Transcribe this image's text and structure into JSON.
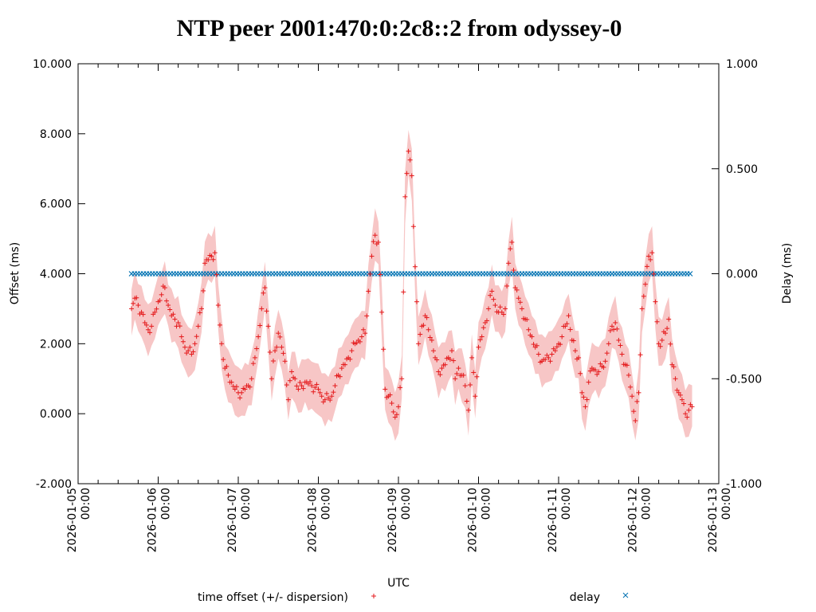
{
  "chart_data": {
    "type": "scatter",
    "title": "NTP peer 2001:470:0:2c8::2 from odyssey-0",
    "xlabel": "UTC",
    "ylabel": "Offset (ms)",
    "y2label": "Delay (ms)",
    "xrange": [
      "2026-01-05 00:00",
      "2026-01-13 00:00"
    ],
    "ylim": [
      -2.0,
      10.0
    ],
    "y2lim": [
      -1.0,
      1.0
    ],
    "grid": false,
    "legend_position": "bottom",
    "x_tick_labels": [
      {
        "date": "2026-01-05",
        "time": "00:00"
      },
      {
        "date": "2026-01-06",
        "time": "00:00"
      },
      {
        "date": "2026-01-07",
        "time": "00:00"
      },
      {
        "date": "2026-01-08",
        "time": "00:00"
      },
      {
        "date": "2026-01-09",
        "time": "00:00"
      },
      {
        "date": "2026-01-10",
        "time": "00:00"
      },
      {
        "date": "2026-01-11",
        "time": "00:00"
      },
      {
        "date": "2026-01-12",
        "time": "00:00"
      },
      {
        "date": "2026-01-13",
        "time": "00:00"
      }
    ],
    "y_tick_labels": [
      "-2.000",
      "0.000",
      "2.000",
      "4.000",
      "6.000",
      "8.000",
      "10.000"
    ],
    "y_tick_values": [
      -2,
      0,
      2,
      4,
      6,
      8,
      10
    ],
    "y2_tick_labels": [
      "-1.000",
      "-0.500",
      "0.000",
      "0.500",
      "1.000"
    ],
    "y2_tick_values": [
      -1.0,
      -0.5,
      0.0,
      0.5,
      1.0
    ],
    "x_unit": "hours since 2026-01-05 00:00",
    "series": [
      {
        "name": "time offset (+/- dispersion)",
        "marker": "+",
        "color": "#e41a1c",
        "band_color": "#f7c6c6",
        "dispersion": 0.55,
        "points": [
          [
            16,
            3.0
          ],
          [
            17,
            3.3
          ],
          [
            18,
            3.1
          ],
          [
            19,
            2.9
          ],
          [
            20,
            2.6
          ],
          [
            21,
            2.4
          ],
          [
            22,
            2.5
          ],
          [
            23,
            2.9
          ],
          [
            24,
            3.2
          ],
          [
            25,
            3.4
          ],
          [
            26,
            3.6
          ],
          [
            27,
            3.1
          ],
          [
            28,
            2.8
          ],
          [
            29,
            2.7
          ],
          [
            30,
            2.6
          ],
          [
            31,
            2.2
          ],
          [
            32,
            1.9
          ],
          [
            33,
            1.8
          ],
          [
            34,
            1.7
          ],
          [
            35,
            2.0
          ],
          [
            36,
            2.5
          ],
          [
            37,
            3.0
          ],
          [
            38,
            4.3
          ],
          [
            39,
            4.4
          ],
          [
            40,
            4.5
          ],
          [
            41,
            4.6
          ],
          [
            42,
            3.1
          ],
          [
            43,
            2.0
          ],
          [
            44,
            1.3
          ],
          [
            45,
            1.1
          ],
          [
            46,
            0.9
          ],
          [
            47,
            0.7
          ],
          [
            48,
            0.6
          ],
          [
            49,
            0.6
          ],
          [
            50,
            0.7
          ],
          [
            51,
            0.8
          ],
          [
            52,
            1.0
          ],
          [
            53,
            1.6
          ],
          [
            54,
            2.2
          ],
          [
            55,
            3.0
          ],
          [
            56,
            3.6
          ],
          [
            57,
            2.5
          ],
          [
            58,
            1.0
          ],
          [
            59,
            1.8
          ],
          [
            60,
            2.3
          ],
          [
            61,
            1.9
          ],
          [
            62,
            1.5
          ],
          [
            63,
            0.4
          ],
          [
            64,
            1.2
          ],
          [
            65,
            1.0
          ],
          [
            66,
            0.7
          ],
          [
            67,
            0.8
          ],
          [
            68,
            0.9
          ],
          [
            69,
            0.85
          ],
          [
            70,
            0.8
          ],
          [
            71,
            0.75
          ],
          [
            72,
            0.7
          ],
          [
            73,
            0.5
          ],
          [
            74,
            0.4
          ],
          [
            75,
            0.45
          ],
          [
            76,
            0.5
          ],
          [
            77,
            0.8
          ],
          [
            78,
            1.1
          ],
          [
            79,
            1.3
          ],
          [
            80,
            1.4
          ],
          [
            81,
            1.6
          ],
          [
            82,
            1.8
          ],
          [
            83,
            2.0
          ],
          [
            84,
            2.1
          ],
          [
            85,
            2.2
          ],
          [
            86,
            2.3
          ],
          [
            87,
            3.5
          ],
          [
            88,
            4.5
          ],
          [
            89,
            5.1
          ],
          [
            90,
            4.9
          ],
          [
            91,
            2.9
          ],
          [
            92,
            0.7
          ],
          [
            93,
            0.5
          ],
          [
            94,
            0.3
          ],
          [
            95,
            -0.1
          ],
          [
            96,
            0.2
          ],
          [
            97,
            1.0
          ],
          [
            98,
            6.2
          ],
          [
            99,
            7.5
          ],
          [
            100,
            6.8
          ],
          [
            101,
            4.2
          ],
          [
            102,
            2.0
          ],
          [
            103,
            2.5
          ],
          [
            104,
            2.8
          ],
          [
            105,
            2.4
          ],
          [
            106,
            2.1
          ],
          [
            107,
            1.6
          ],
          [
            108,
            1.2
          ],
          [
            109,
            1.3
          ],
          [
            110,
            1.4
          ],
          [
            111,
            1.6
          ],
          [
            112,
            1.8
          ],
          [
            113,
            1.0
          ],
          [
            114,
            1.3
          ],
          [
            115,
            1.1
          ],
          [
            116,
            0.8
          ],
          [
            117,
            0.1
          ],
          [
            118,
            1.6
          ],
          [
            119,
            0.5
          ],
          [
            120,
            1.9
          ],
          [
            121,
            2.2
          ],
          [
            122,
            2.6
          ],
          [
            123,
            3.0
          ],
          [
            124,
            3.5
          ],
          [
            125,
            3.1
          ],
          [
            126,
            2.9
          ],
          [
            127,
            2.9
          ],
          [
            128,
            3.0
          ],
          [
            129,
            4.3
          ],
          [
            130,
            4.9
          ],
          [
            131,
            3.6
          ],
          [
            132,
            3.3
          ],
          [
            133,
            3.0
          ],
          [
            134,
            2.7
          ],
          [
            135,
            2.4
          ],
          [
            136,
            2.2
          ],
          [
            137,
            1.9
          ],
          [
            138,
            1.7
          ],
          [
            139,
            1.5
          ],
          [
            140,
            1.55
          ],
          [
            141,
            1.6
          ],
          [
            142,
            1.7
          ],
          [
            143,
            1.8
          ],
          [
            144,
            2.0
          ],
          [
            145,
            2.2
          ],
          [
            146,
            2.5
          ],
          [
            147,
            2.8
          ],
          [
            148,
            2.1
          ],
          [
            149,
            1.8
          ],
          [
            150,
            1.6
          ],
          [
            151,
            0.6
          ],
          [
            152,
            0.2
          ],
          [
            153,
            0.9
          ],
          [
            154,
            1.3
          ],
          [
            155,
            1.25
          ],
          [
            156,
            1.2
          ],
          [
            157,
            1.35
          ],
          [
            158,
            1.5
          ],
          [
            159,
            2.0
          ],
          [
            160,
            2.5
          ],
          [
            161,
            2.6
          ],
          [
            162,
            2.1
          ],
          [
            163,
            1.7
          ],
          [
            164,
            1.4
          ],
          [
            165,
            1.1
          ],
          [
            166,
            0.5
          ],
          [
            167,
            -0.2
          ],
          [
            168,
            0.6
          ],
          [
            169,
            3.0
          ],
          [
            170,
            3.7
          ],
          [
            171,
            4.5
          ],
          [
            172,
            4.6
          ],
          [
            173,
            3.2
          ],
          [
            174,
            2.0
          ],
          [
            175,
            2.1
          ],
          [
            176,
            2.3
          ],
          [
            177,
            2.7
          ],
          [
            178,
            1.4
          ],
          [
            179,
            1.0
          ],
          [
            180,
            0.6
          ],
          [
            181,
            0.4
          ],
          [
            182,
            0.0
          ],
          [
            183,
            0.1
          ],
          [
            184,
            0.2
          ]
        ]
      },
      {
        "name": "delay",
        "marker": "x",
        "color": "#0072b2",
        "axis": "y2",
        "x_start": 16,
        "x_end": 184,
        "value": 0.0
      }
    ]
  }
}
